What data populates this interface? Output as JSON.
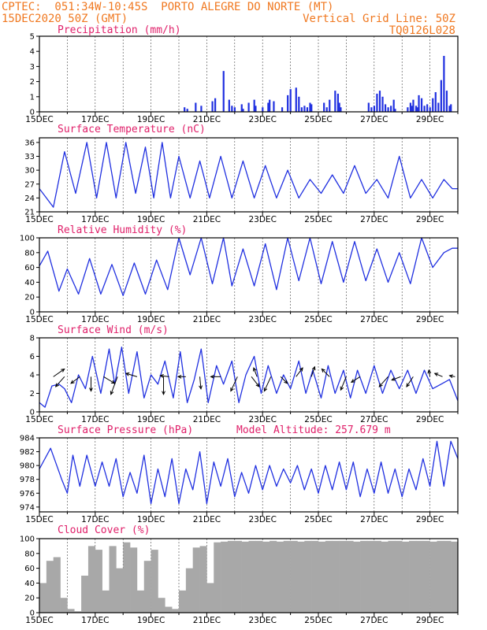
{
  "header": {
    "line1_left": "CPTEC:  051:34W-10:45S  PORTO ALEGRE DO NORTE (MT)",
    "line2_left": "15DEC2020 50Z (GMT)",
    "line2_right": "Vertical Grid Line: 50Z",
    "line3_right": "TQ0126L028"
  },
  "x_axis": {
    "tick_labels": [
      "15DEC",
      "17DEC",
      "19DEC",
      "21DEC",
      "23DEC",
      "25DEC",
      "27DEC",
      "29DEC"
    ],
    "range_days": [
      0,
      15
    ]
  },
  "colors": {
    "series": "#2030e0",
    "title": "#e0206a",
    "header": "#f07820",
    "cloud": "#a8a8a8"
  },
  "chart_data": [
    {
      "type": "bar",
      "title": "Precipitation (mm/h)",
      "ylim": [
        0,
        5
      ],
      "yticks": [
        0,
        1,
        2,
        3,
        4,
        5
      ],
      "x": [
        5.2,
        5.3,
        5.6,
        5.8,
        6.2,
        6.3,
        6.6,
        6.8,
        6.9,
        7.0,
        7.25,
        7.3,
        7.5,
        7.7,
        7.75,
        8.0,
        8.2,
        8.25,
        8.4,
        8.7,
        8.9,
        9.0,
        9.2,
        9.3,
        9.4,
        9.5,
        9.6,
        9.7,
        9.75,
        10.2,
        10.3,
        10.4,
        10.6,
        10.7,
        10.75,
        10.8,
        11.8,
        11.9,
        12.0,
        12.1,
        12.2,
        12.3,
        12.4,
        12.5,
        12.6,
        12.7,
        12.75,
        13.2,
        13.3,
        13.35,
        13.4,
        13.5,
        13.55,
        13.6,
        13.7,
        13.8,
        13.9,
        14.0,
        14.1,
        14.2,
        14.3,
        14.4,
        14.5,
        14.6,
        14.7,
        14.75
      ],
      "values": [
        0.3,
        0.2,
        0.6,
        0.4,
        0.7,
        0.9,
        2.7,
        0.8,
        0.4,
        0.3,
        0.5,
        0.2,
        0.6,
        0.8,
        0.4,
        0.3,
        0.6,
        0.8,
        0.7,
        0.3,
        1.1,
        1.5,
        1.6,
        1.0,
        0.3,
        0.4,
        0.3,
        0.6,
        0.5,
        0.6,
        0.3,
        0.8,
        1.4,
        1.2,
        0.6,
        0.3,
        0.6,
        0.3,
        0.4,
        1.2,
        1.4,
        1.0,
        0.5,
        0.3,
        0.4,
        0.8,
        0.2,
        0.3,
        0.6,
        0.4,
        0.8,
        0.4,
        0.3,
        1.1,
        0.9,
        0.4,
        0.5,
        0.3,
        0.9,
        1.3,
        0.6,
        2.1,
        3.7,
        1.4,
        0.4,
        0.5
      ]
    },
    {
      "type": "line",
      "title": "Surface Temperature (nC)",
      "ylim": [
        21,
        37
      ],
      "yticks": [
        21,
        24,
        27,
        30,
        33,
        36
      ],
      "x": [
        0,
        0.25,
        0.5,
        0.9,
        1.3,
        1.7,
        2.05,
        2.4,
        2.75,
        3.1,
        3.45,
        3.8,
        4.1,
        4.4,
        4.7,
        5.0,
        5.4,
        5.75,
        6.1,
        6.5,
        6.9,
        7.3,
        7.7,
        8.1,
        8.5,
        8.9,
        9.3,
        9.7,
        10.1,
        10.5,
        10.9,
        11.3,
        11.7,
        12.1,
        12.5,
        12.9,
        13.3,
        13.7,
        14.1,
        14.5,
        14.8,
        15
      ],
      "values": [
        26,
        24,
        22,
        34,
        25,
        36,
        24,
        36,
        24,
        36,
        25,
        35,
        24,
        36,
        24,
        33,
        24,
        32,
        24,
        33,
        24,
        32,
        24,
        31,
        24,
        30,
        24,
        28,
        25,
        29,
        25,
        31,
        25,
        28,
        24,
        33,
        24,
        28,
        24,
        28,
        26,
        26
      ]
    },
    {
      "type": "line",
      "title": "Relative Humidity (%)",
      "ylim": [
        0,
        100
      ],
      "yticks": [
        0,
        20,
        40,
        60,
        80,
        100
      ],
      "x": [
        0,
        0.3,
        0.7,
        1.0,
        1.4,
        1.8,
        2.2,
        2.6,
        3.0,
        3.4,
        3.8,
        4.2,
        4.6,
        5.0,
        5.4,
        5.8,
        6.2,
        6.6,
        6.9,
        7.3,
        7.7,
        8.1,
        8.5,
        8.9,
        9.3,
        9.7,
        10.1,
        10.5,
        10.9,
        11.3,
        11.7,
        12.1,
        12.5,
        12.9,
        13.3,
        13.7,
        14.1,
        14.5,
        14.8,
        15
      ],
      "values": [
        62,
        82,
        28,
        58,
        24,
        72,
        24,
        64,
        22,
        66,
        24,
        70,
        30,
        100,
        50,
        100,
        38,
        100,
        35,
        85,
        35,
        92,
        30,
        100,
        42,
        100,
        38,
        95,
        40,
        95,
        42,
        85,
        40,
        80,
        38,
        100,
        60,
        80,
        86,
        86
      ]
    },
    {
      "type": "line",
      "title": "Surface Wind (m/s)",
      "ylim": [
        0,
        8
      ],
      "yticks": [
        0,
        2,
        4,
        6,
        8
      ],
      "x": [
        0,
        0.2,
        0.45,
        0.7,
        0.9,
        1.15,
        1.4,
        1.65,
        1.9,
        2.2,
        2.5,
        2.7,
        2.95,
        3.2,
        3.5,
        3.75,
        4.0,
        4.25,
        4.5,
        4.8,
        5.05,
        5.3,
        5.55,
        5.8,
        6.05,
        6.35,
        6.6,
        6.9,
        7.15,
        7.4,
        7.7,
        7.95,
        8.2,
        8.5,
        8.75,
        9.0,
        9.3,
        9.55,
        9.8,
        10.1,
        10.35,
        10.6,
        10.9,
        11.15,
        11.4,
        11.7,
        12.0,
        12.3,
        12.6,
        12.9,
        13.2,
        13.5,
        13.8,
        14.1,
        14.4,
        14.7,
        15
      ],
      "values": [
        1,
        0.5,
        2.8,
        3,
        2.5,
        1,
        4,
        2.5,
        6,
        2,
        6.8,
        3,
        7,
        2,
        6.5,
        1.5,
        4,
        3,
        5.5,
        1.5,
        6.5,
        1,
        3.5,
        6.8,
        1,
        5,
        3,
        5.5,
        1,
        4,
        6,
        2,
        5,
        2,
        4,
        2.5,
        5.5,
        2,
        4.5,
        1.5,
        5,
        2,
        4.5,
        1.5,
        4.5,
        2,
        5,
        2,
        4.5,
        2.5,
        4.5,
        2,
        4.5,
        2.5,
        3,
        3.5,
        1.2
      ],
      "arrows": [
        {
          "x": 0.5,
          "u": 1.0,
          "v": -0.7
        },
        {
          "x": 0.9,
          "u": -0.8,
          "v": 0.9
        },
        {
          "x": 1.45,
          "u": -0.8,
          "v": 0.6
        },
        {
          "x": 1.85,
          "u": 0.0,
          "v": 1.3
        },
        {
          "x": 2.3,
          "u": 1.0,
          "v": 0.6
        },
        {
          "x": 2.8,
          "u": -0.6,
          "v": 1.6
        },
        {
          "x": 3.5,
          "u": -1.0,
          "v": -0.3
        },
        {
          "x": 4.45,
          "u": 0.0,
          "v": 1.6
        },
        {
          "x": 4.65,
          "u": -0.8,
          "v": -0.1
        },
        {
          "x": 5.25,
          "u": -0.7,
          "v": 0.0
        },
        {
          "x": 5.75,
          "u": 0.1,
          "v": 1.1
        },
        {
          "x": 6.5,
          "u": -0.9,
          "v": 0.0
        },
        {
          "x": 7.1,
          "u": -0.6,
          "v": 1.3
        },
        {
          "x": 7.6,
          "u": 0.7,
          "v": 0.9
        },
        {
          "x": 7.8,
          "u": -0.3,
          "v": -0.8
        },
        {
          "x": 8.3,
          "u": -0.6,
          "v": 1.3
        },
        {
          "x": 8.65,
          "u": 0.6,
          "v": 0.6
        },
        {
          "x": 9.2,
          "u": 0.6,
          "v": -0.8
        },
        {
          "x": 9.75,
          "u": 0.3,
          "v": -0.9
        },
        {
          "x": 10.4,
          "u": -0.7,
          "v": -0.7
        },
        {
          "x": 11.0,
          "u": -0.5,
          "v": 1.2
        },
        {
          "x": 11.5,
          "u": -0.8,
          "v": 0.5
        },
        {
          "x": 12.5,
          "u": -0.8,
          "v": 0.9
        },
        {
          "x": 12.95,
          "u": -0.8,
          "v": 0.3
        },
        {
          "x": 13.4,
          "u": -0.6,
          "v": 0.9
        },
        {
          "x": 14.0,
          "u": -0.1,
          "v": -0.6
        },
        {
          "x": 14.45,
          "u": -0.7,
          "v": -0.3
        },
        {
          "x": 14.9,
          "u": -0.5,
          "v": -0.1
        }
      ]
    },
    {
      "type": "line",
      "title": "Surface Pressure (hPa)",
      "annotation": "Model Altitude: 257.679 m",
      "ylim": [
        973.3,
        984
      ],
      "yticks": [
        974,
        976,
        978,
        980,
        982,
        984
      ],
      "x": [
        0,
        0.4,
        0.8,
        1.0,
        1.2,
        1.45,
        1.7,
        2.0,
        2.25,
        2.5,
        2.75,
        3.0,
        3.25,
        3.5,
        3.75,
        4.0,
        4.25,
        4.5,
        4.75,
        5.0,
        5.25,
        5.5,
        5.75,
        6.0,
        6.25,
        6.5,
        6.75,
        7.0,
        7.25,
        7.5,
        7.75,
        8.0,
        8.25,
        8.5,
        8.75,
        9.0,
        9.25,
        9.5,
        9.75,
        10.0,
        10.25,
        10.5,
        10.75,
        11.0,
        11.25,
        11.5,
        11.75,
        12.0,
        12.25,
        12.5,
        12.75,
        13.0,
        13.25,
        13.5,
        13.75,
        14.0,
        14.25,
        14.5,
        14.75,
        15
      ],
      "values": [
        979.5,
        982.5,
        978,
        976,
        981.5,
        977,
        981.5,
        977,
        980.5,
        977,
        981,
        975.5,
        979,
        976,
        981.5,
        974.5,
        979.5,
        975.5,
        981,
        974.5,
        979.5,
        976.5,
        982,
        974.5,
        980.5,
        977,
        981,
        975.5,
        979,
        976,
        980,
        976.5,
        980,
        977,
        979.5,
        977.5,
        980,
        976.5,
        979.5,
        976,
        980,
        976.5,
        980.5,
        976.5,
        980.5,
        975.5,
        979.5,
        976,
        980.5,
        976,
        979.5,
        975.5,
        979.5,
        976.5,
        981,
        977,
        983.5,
        977,
        983.5,
        981
      ]
    },
    {
      "type": "bar",
      "title": "Cloud Cover (%)",
      "ylim": [
        0,
        100
      ],
      "yticks": [
        0,
        20,
        40,
        60,
        80,
        100
      ],
      "x": [
        0,
        0.25,
        0.5,
        0.75,
        1.0,
        1.25,
        1.5,
        1.75,
        2.0,
        2.25,
        2.5,
        2.75,
        3.0,
        3.25,
        3.5,
        3.75,
        4.0,
        4.25,
        4.5,
        4.75,
        5.0,
        5.25,
        5.5,
        5.75,
        6.0,
        6.25,
        6.5,
        6.75,
        7.0,
        7.25,
        7.5,
        7.75,
        8.0,
        8.25,
        8.5,
        8.75,
        9.0,
        9.25,
        9.5,
        9.75,
        10.0,
        10.25,
        10.5,
        10.75,
        11.0,
        11.25,
        11.5,
        11.75,
        12.0,
        12.25,
        12.5,
        12.75,
        13.0,
        13.25,
        13.5,
        13.75,
        14.0,
        14.25,
        14.5,
        14.75
      ],
      "values": [
        40,
        70,
        75,
        20,
        5,
        2,
        50,
        90,
        85,
        30,
        90,
        60,
        95,
        88,
        30,
        70,
        85,
        20,
        8,
        5,
        30,
        60,
        88,
        90,
        40,
        95,
        96,
        97,
        97,
        96,
        97,
        97,
        96,
        97,
        96,
        97,
        97,
        96,
        97,
        97,
        96,
        97,
        97,
        97,
        97,
        96,
        97,
        97,
        97,
        96,
        97,
        97,
        96,
        97,
        97,
        97,
        96,
        97,
        97,
        96
      ]
    }
  ]
}
